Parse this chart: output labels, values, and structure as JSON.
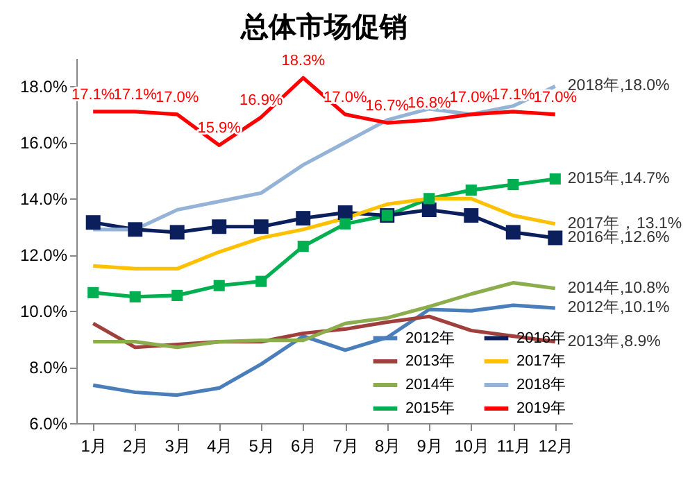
{
  "chart_data": {
    "type": "line",
    "title": "总体市场促销",
    "categories": [
      "1月",
      "2月",
      "3月",
      "4月",
      "5月",
      "6月",
      "7月",
      "8月",
      "9月",
      "10月",
      "11月",
      "12月"
    ],
    "series": [
      {
        "name": "2012年",
        "color": "#4a7ebb",
        "values": [
          7.35,
          7.1,
          7.0,
          7.25,
          8.1,
          9.1,
          8.6,
          9.05,
          10.05,
          10.0,
          10.2,
          10.1
        ]
      },
      {
        "name": "2013年",
        "color": "#a0403c",
        "values": [
          9.55,
          8.7,
          8.8,
          8.9,
          8.9,
          9.2,
          9.35,
          9.6,
          9.8,
          9.3,
          9.1,
          8.9
        ]
      },
      {
        "name": "2014年",
        "color": "#8cad4c",
        "values": [
          8.9,
          8.9,
          8.7,
          8.9,
          8.95,
          8.95,
          9.55,
          9.75,
          10.15,
          10.6,
          11.0,
          10.8
        ]
      },
      {
        "name": "2015年",
        "color": "#00b050",
        "marker": "square",
        "values": [
          10.65,
          10.5,
          10.55,
          10.9,
          11.05,
          12.3,
          13.1,
          13.4,
          14.0,
          14.3,
          14.5,
          14.7
        ]
      },
      {
        "name": "2016年",
        "color": "#0a1f5c",
        "marker": "square",
        "values": [
          13.15,
          12.9,
          12.8,
          13.0,
          13.0,
          13.3,
          13.5,
          13.4,
          13.6,
          13.4,
          12.8,
          12.6
        ]
      },
      {
        "name": "2017年",
        "color": "#ffc000",
        "values": [
          11.6,
          11.5,
          11.5,
          12.1,
          12.6,
          12.9,
          13.3,
          13.8,
          14.0,
          14.0,
          13.4,
          13.1
        ]
      },
      {
        "name": "2018年",
        "color": "#95b3d7",
        "values": [
          12.9,
          12.9,
          13.6,
          13.9,
          14.2,
          15.2,
          16.0,
          16.8,
          17.2,
          17.0,
          17.3,
          18.0
        ]
      },
      {
        "name": "2019年",
        "color": "#ff0000",
        "values": [
          17.1,
          17.1,
          17.0,
          15.9,
          16.9,
          18.3,
          17.0,
          16.7,
          16.8,
          17.0,
          17.1,
          17.0
        ],
        "value_labels": [
          "17.1%",
          "17.1%",
          "17.0%",
          "15.9%",
          "16.9%",
          "18.3%",
          "17.0%",
          "16.7%",
          "16.8%",
          "17.0%",
          "17.1%",
          "17.0%"
        ]
      }
    ],
    "ylim": [
      6,
      19
    ],
    "yticks": [
      {
        "value": 6,
        "label": "6.0%"
      },
      {
        "value": 8,
        "label": "8.0%"
      },
      {
        "value": 10,
        "label": "10.0%"
      },
      {
        "value": 12,
        "label": "12.0%"
      },
      {
        "value": 14,
        "label": "14.0%"
      },
      {
        "value": 16,
        "label": "16.0%"
      },
      {
        "value": 18,
        "label": "18.0%"
      }
    ],
    "annotations": [
      {
        "text": "2018年,18.0%",
        "x": "12月",
        "y": 18.0
      },
      {
        "text": "2015年,14.7%",
        "x": "12月",
        "y": 14.7
      },
      {
        "text": "2017年，13.1%",
        "x": "12月",
        "y": 13.1
      },
      {
        "text": "2016年,12.6%",
        "x": "12月",
        "y": 12.6
      },
      {
        "text": "2014年,10.8%",
        "x": "12月",
        "y": 10.8
      },
      {
        "text": "2012年,10.1%",
        "x": "12月",
        "y": 10.1
      },
      {
        "text": "2013年,8.9%",
        "x": "12月",
        "y": 8.9
      }
    ],
    "legend": "bottom right",
    "grid": false,
    "line_style": "solid"
  }
}
